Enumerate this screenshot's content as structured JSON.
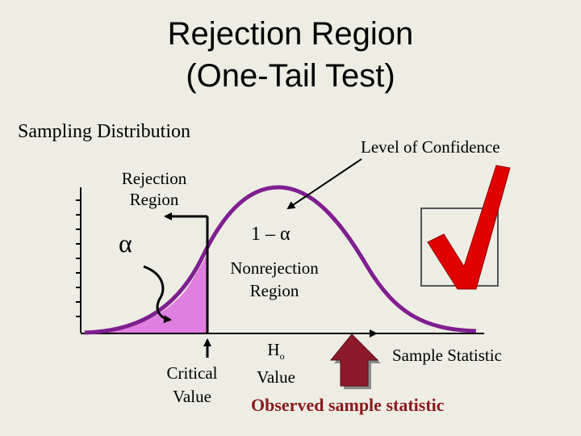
{
  "title": {
    "line1": "Rejection Region",
    "line2": "(One-Tail Test)"
  },
  "labels": {
    "sampling_distribution": "Sampling Distribution",
    "level_of_confidence": "Level of Confidence",
    "rejection_region_line1": "Rejection",
    "rejection_region_line2": "Region",
    "alpha": "α",
    "one_minus_alpha": "1 – α",
    "nonrejection_line1": "Nonrejection",
    "nonrejection_line2": "Region",
    "critical_value_line1": "Critical",
    "critical_value_line2": "Value",
    "h0_symbol": "H",
    "h0_subscript": "o",
    "h0_value": "Value",
    "sample_statistic": "Sample Statistic",
    "observed_sample_statistic": "Observed sample statistic"
  },
  "colors": {
    "background": "#eeede4",
    "curve": "#7f1f8f",
    "rejection_fill": "#e07fe0",
    "checkmark": "#e00000",
    "up_arrow": "#8c1a2a",
    "observed_text": "#8b1a1a"
  },
  "icons": {
    "checkmark": "checkmark-icon",
    "up_arrow": "up-arrow-icon"
  }
}
